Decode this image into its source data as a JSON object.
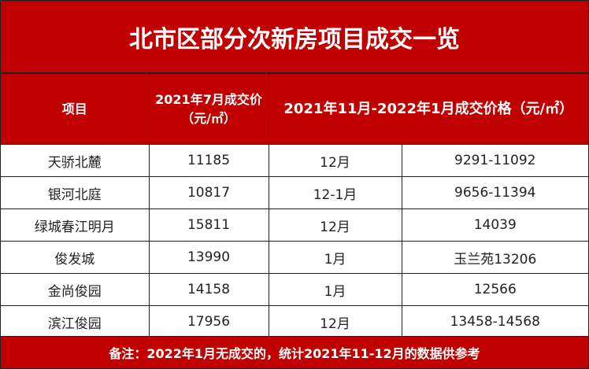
{
  "title": "北市区部分次新房项目成交一览",
  "headers": {
    "project": "项目",
    "july_line1": "2021年7月成交价",
    "july_line2": "（元/㎡）",
    "recent": "2021年11月-2022年1月成交价格（元/㎡）"
  },
  "rows": [
    {
      "name": "天骄北麓",
      "july": "11185",
      "month": "12月",
      "price": "9291-11092"
    },
    {
      "name": "银河北庭",
      "july": "10817",
      "month": "12-1月",
      "price": "9656-11394"
    },
    {
      "name": "绿城春江明月",
      "july": "15811",
      "month": "12月",
      "price": "14039"
    },
    {
      "name": "俊发城",
      "july": "13990",
      "month": "1月",
      "price": "玉兰苑13206"
    },
    {
      "name": "金尚俊园",
      "july": "14158",
      "month": "1月",
      "price": "12566"
    },
    {
      "name": "滨江俊园",
      "july": "17956",
      "month": "12月",
      "price": "13458-14568"
    }
  ],
  "footnote": "备注：2022年1月无成交的，统计2021年11-12月的数据供参考",
  "colors": {
    "header_bg": "#c00000",
    "header_text": "#ffffff"
  }
}
